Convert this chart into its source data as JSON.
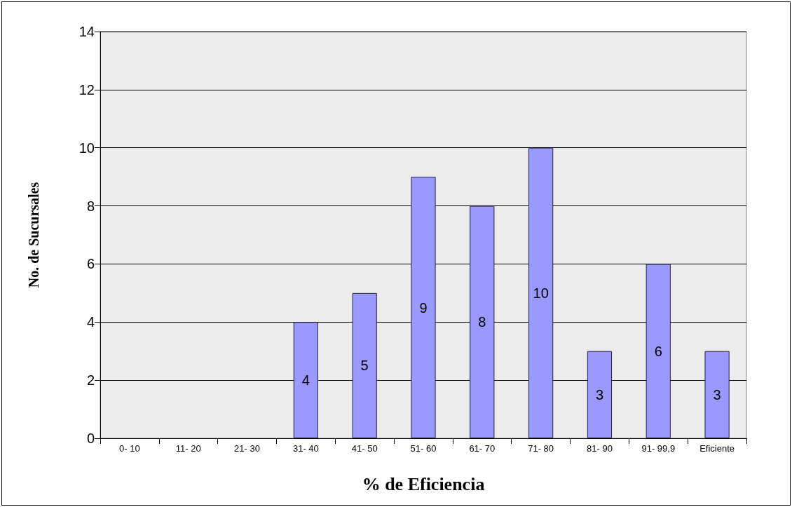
{
  "chart_data": {
    "type": "bar",
    "xlabel": "% de Eficiencia",
    "ylabel": "No. de Sucursales",
    "categories": [
      "0- 10",
      "11- 20",
      "21- 30",
      "31- 40",
      "41- 50",
      "51- 60",
      "61- 70",
      "71- 80",
      "81- 90",
      "91- 99,9",
      "Eficiente"
    ],
    "values": [
      0,
      0,
      0,
      4,
      5,
      9,
      8,
      10,
      3,
      6,
      3
    ],
    "value_labels": [
      null,
      null,
      null,
      "4",
      "5",
      "9",
      "8",
      "10",
      "3",
      "6",
      "3"
    ],
    "color": "#9999ff",
    "ylim": [
      0,
      14
    ],
    "yticks": [
      0,
      2,
      4,
      6,
      8,
      10,
      12,
      14
    ],
    "grid": "y"
  }
}
